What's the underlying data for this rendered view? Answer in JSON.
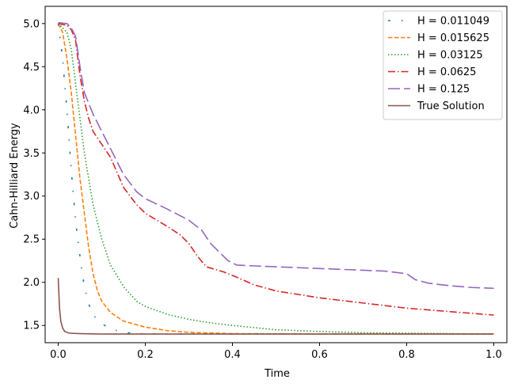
{
  "chart_data": {
    "type": "line",
    "title": "",
    "xlabel": "Time",
    "ylabel": "Cahn-Hilliard Energy",
    "xlim": [
      -0.03,
      1.03
    ],
    "ylim": [
      1.3,
      5.2
    ],
    "xticks": [
      0.0,
      0.2,
      0.4,
      0.6,
      0.8,
      1.0
    ],
    "xtick_labels": [
      "0.0",
      "0.2",
      "0.4",
      "0.6",
      "0.8",
      "1.0"
    ],
    "yticks": [
      1.5,
      2.0,
      2.5,
      3.0,
      3.5,
      4.0,
      4.5,
      5.0
    ],
    "ytick_labels": [
      "1.5",
      "2.0",
      "2.5",
      "3.0",
      "3.5",
      "4.0",
      "4.5",
      "5.0"
    ],
    "grid": false,
    "legend_position": "top-right",
    "series": [
      {
        "name": "H = 0.011049",
        "color": "#1f77b4",
        "style": "dashdot-sparse",
        "points": [
          [
            0.0,
            5.0
          ],
          [
            0.01,
            4.6
          ],
          [
            0.02,
            4.0
          ],
          [
            0.03,
            3.3
          ],
          [
            0.04,
            2.7
          ],
          [
            0.05,
            2.3
          ],
          [
            0.06,
            1.95
          ],
          [
            0.07,
            1.75
          ],
          [
            0.08,
            1.62
          ],
          [
            0.1,
            1.52
          ],
          [
            0.12,
            1.46
          ],
          [
            0.15,
            1.42
          ],
          [
            0.18,
            1.405
          ],
          [
            0.25,
            1.4
          ],
          [
            0.4,
            1.4
          ],
          [
            0.6,
            1.4
          ],
          [
            0.8,
            1.4
          ],
          [
            1.0,
            1.4
          ]
        ]
      },
      {
        "name": "H = 0.015625",
        "color": "#ff7f0e",
        "style": "dashed",
        "points": [
          [
            0.0,
            5.0
          ],
          [
            0.01,
            4.9
          ],
          [
            0.02,
            4.6
          ],
          [
            0.03,
            4.2
          ],
          [
            0.04,
            3.7
          ],
          [
            0.05,
            3.2
          ],
          [
            0.06,
            2.8
          ],
          [
            0.07,
            2.4
          ],
          [
            0.08,
            2.1
          ],
          [
            0.09,
            1.9
          ],
          [
            0.1,
            1.78
          ],
          [
            0.12,
            1.65
          ],
          [
            0.15,
            1.55
          ],
          [
            0.2,
            1.48
          ],
          [
            0.25,
            1.44
          ],
          [
            0.3,
            1.42
          ],
          [
            0.4,
            1.405
          ],
          [
            0.6,
            1.4
          ],
          [
            0.8,
            1.4
          ],
          [
            1.0,
            1.4
          ]
        ]
      },
      {
        "name": "H = 0.03125",
        "color": "#2ca02c",
        "style": "dotted",
        "points": [
          [
            0.0,
            5.0
          ],
          [
            0.01,
            4.95
          ],
          [
            0.02,
            4.9
          ],
          [
            0.03,
            4.7
          ],
          [
            0.04,
            4.3
          ],
          [
            0.05,
            3.9
          ],
          [
            0.06,
            3.5
          ],
          [
            0.07,
            3.2
          ],
          [
            0.08,
            2.9
          ],
          [
            0.09,
            2.7
          ],
          [
            0.1,
            2.5
          ],
          [
            0.12,
            2.2
          ],
          [
            0.15,
            1.95
          ],
          [
            0.18,
            1.78
          ],
          [
            0.2,
            1.72
          ],
          [
            0.25,
            1.63
          ],
          [
            0.3,
            1.57
          ],
          [
            0.35,
            1.53
          ],
          [
            0.4,
            1.5
          ],
          [
            0.5,
            1.45
          ],
          [
            0.6,
            1.43
          ],
          [
            0.7,
            1.415
          ],
          [
            0.8,
            1.41
          ],
          [
            0.9,
            1.405
          ],
          [
            1.0,
            1.4
          ]
        ]
      },
      {
        "name": "H = 0.0625",
        "color": "#d62728",
        "style": "dashdot",
        "points": [
          [
            0.0,
            5.0
          ],
          [
            0.02,
            4.98
          ],
          [
            0.03,
            4.93
          ],
          [
            0.04,
            4.8
          ],
          [
            0.05,
            4.4
          ],
          [
            0.06,
            4.1
          ],
          [
            0.07,
            3.9
          ],
          [
            0.08,
            3.75
          ],
          [
            0.1,
            3.6
          ],
          [
            0.12,
            3.45
          ],
          [
            0.15,
            3.1
          ],
          [
            0.18,
            2.9
          ],
          [
            0.2,
            2.8
          ],
          [
            0.25,
            2.65
          ],
          [
            0.28,
            2.55
          ],
          [
            0.3,
            2.45
          ],
          [
            0.32,
            2.3
          ],
          [
            0.34,
            2.18
          ],
          [
            0.38,
            2.12
          ],
          [
            0.4,
            2.08
          ],
          [
            0.45,
            1.97
          ],
          [
            0.5,
            1.9
          ],
          [
            0.6,
            1.82
          ],
          [
            0.7,
            1.76
          ],
          [
            0.8,
            1.7
          ],
          [
            0.9,
            1.66
          ],
          [
            1.0,
            1.62
          ]
        ]
      },
      {
        "name": "H = 0.125",
        "color": "#9467bd",
        "style": "longdash",
        "points": [
          [
            0.0,
            5.01
          ],
          [
            0.02,
            5.0
          ],
          [
            0.03,
            4.95
          ],
          [
            0.04,
            4.85
          ],
          [
            0.05,
            4.5
          ],
          [
            0.06,
            4.2
          ],
          [
            0.08,
            3.95
          ],
          [
            0.1,
            3.75
          ],
          [
            0.12,
            3.55
          ],
          [
            0.15,
            3.25
          ],
          [
            0.18,
            3.05
          ],
          [
            0.2,
            2.97
          ],
          [
            0.25,
            2.85
          ],
          [
            0.3,
            2.72
          ],
          [
            0.33,
            2.6
          ],
          [
            0.35,
            2.45
          ],
          [
            0.37,
            2.35
          ],
          [
            0.39,
            2.25
          ],
          [
            0.41,
            2.2
          ],
          [
            0.45,
            2.19
          ],
          [
            0.5,
            2.18
          ],
          [
            0.6,
            2.16
          ],
          [
            0.7,
            2.14
          ],
          [
            0.75,
            2.13
          ],
          [
            0.8,
            2.1
          ],
          [
            0.82,
            2.03
          ],
          [
            0.85,
            1.99
          ],
          [
            0.9,
            1.96
          ],
          [
            0.95,
            1.94
          ],
          [
            1.0,
            1.93
          ]
        ]
      },
      {
        "name": "True Solution",
        "color": "#8c564b",
        "style": "solid",
        "points": [
          [
            0.0,
            2.05
          ],
          [
            0.003,
            1.7
          ],
          [
            0.006,
            1.55
          ],
          [
            0.01,
            1.47
          ],
          [
            0.015,
            1.43
          ],
          [
            0.025,
            1.41
          ],
          [
            0.05,
            1.405
          ],
          [
            0.1,
            1.4
          ],
          [
            0.3,
            1.4
          ],
          [
            0.5,
            1.4
          ],
          [
            0.7,
            1.4
          ],
          [
            1.0,
            1.4
          ]
        ]
      }
    ]
  }
}
